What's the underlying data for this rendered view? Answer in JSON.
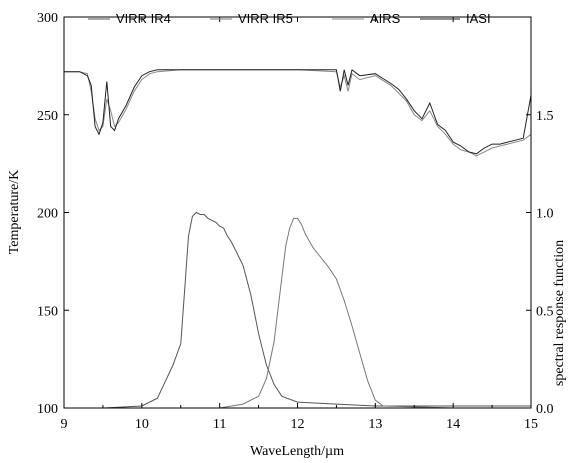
{
  "chart_data": {
    "type": "line",
    "xlabel": "WaveLength/µm",
    "ylabel_left": "Temperature/K",
    "ylabel_right": "spectral response function",
    "xlim": [
      9,
      15
    ],
    "ylim_left": [
      100,
      300
    ],
    "ylim_right": [
      0.0,
      2.0
    ],
    "x_ticks": [
      "9",
      "10",
      "11",
      "12",
      "13",
      "14",
      "15"
    ],
    "y_ticks_left": [
      "100",
      "150",
      "200",
      "250",
      "300"
    ],
    "y_ticks_right": [
      "0.0",
      "0.5",
      "1.0",
      "1.5"
    ],
    "legend_position": "top",
    "series": [
      {
        "name": "VIRR IR4",
        "axis": "right",
        "color": "#555555",
        "x": [
          9.0,
          9.5,
          10.0,
          10.2,
          10.4,
          10.5,
          10.55,
          10.6,
          10.65,
          10.7,
          10.75,
          10.8,
          10.85,
          10.9,
          10.95,
          11.0,
          11.05,
          11.1,
          11.15,
          11.2,
          11.3,
          11.4,
          11.5,
          11.6,
          11.7,
          11.8,
          12.0,
          12.5,
          13.0,
          15.0
        ],
        "y": [
          0.0,
          0.0,
          0.01,
          0.05,
          0.22,
          0.33,
          0.6,
          0.88,
          0.98,
          1.0,
          0.99,
          0.99,
          0.97,
          0.96,
          0.95,
          0.93,
          0.92,
          0.88,
          0.85,
          0.81,
          0.73,
          0.58,
          0.38,
          0.22,
          0.12,
          0.06,
          0.03,
          0.02,
          0.01,
          0.01
        ]
      },
      {
        "name": "VIRR IR5",
        "axis": "right",
        "color": "#777777",
        "x": [
          9.0,
          11.0,
          11.3,
          11.5,
          11.6,
          11.7,
          11.8,
          11.85,
          11.9,
          11.95,
          12.0,
          12.05,
          12.1,
          12.2,
          12.3,
          12.4,
          12.5,
          12.6,
          12.7,
          12.8,
          12.9,
          13.0,
          13.1,
          14.0,
          15.0
        ],
        "y": [
          0.0,
          0.0,
          0.02,
          0.06,
          0.15,
          0.34,
          0.67,
          0.83,
          0.92,
          0.97,
          0.97,
          0.94,
          0.89,
          0.82,
          0.77,
          0.72,
          0.66,
          0.55,
          0.42,
          0.28,
          0.14,
          0.04,
          0.01,
          0.0,
          0.0
        ]
      },
      {
        "name": "AIRS",
        "axis": "left",
        "color": "#888888",
        "x": [
          9.0,
          9.2,
          9.3,
          9.35,
          9.4,
          9.45,
          9.5,
          9.55,
          9.6,
          9.65,
          9.7,
          9.8,
          9.9,
          10.0,
          10.1,
          10.2,
          10.5,
          11.0,
          11.5,
          12.0,
          12.5,
          12.55,
          12.6,
          12.65,
          12.7,
          12.8,
          13.0,
          13.2,
          13.3,
          13.4,
          13.5,
          13.6,
          13.7,
          13.8,
          13.9,
          14.0,
          14.1,
          14.2,
          14.3,
          14.4,
          14.5,
          14.6,
          14.7,
          14.8,
          14.9,
          15.0
        ],
        "y": [
          272,
          272,
          271,
          262,
          248,
          242,
          244,
          258,
          252,
          244,
          246,
          253,
          262,
          268,
          271,
          272,
          273,
          273,
          273,
          273,
          272,
          264,
          270,
          262,
          271,
          268,
          270,
          265,
          261,
          257,
          250,
          247,
          252,
          244,
          240,
          235,
          232,
          231,
          229,
          231,
          233,
          234,
          235,
          236,
          237,
          240
        ]
      },
      {
        "name": "IASI",
        "axis": "left",
        "color": "#222222",
        "x": [
          9.0,
          9.2,
          9.3,
          9.35,
          9.4,
          9.45,
          9.5,
          9.55,
          9.6,
          9.65,
          9.7,
          9.8,
          9.9,
          10.0,
          10.1,
          10.2,
          10.5,
          11.0,
          11.5,
          12.0,
          12.5,
          12.55,
          12.6,
          12.65,
          12.7,
          12.8,
          13.0,
          13.2,
          13.3,
          13.4,
          13.5,
          13.6,
          13.7,
          13.8,
          13.9,
          14.0,
          14.1,
          14.2,
          14.3,
          14.4,
          14.5,
          14.6,
          14.7,
          14.8,
          14.9,
          15.0
        ],
        "y": [
          272,
          272,
          270,
          265,
          244,
          240,
          246,
          267,
          244,
          242,
          248,
          255,
          264,
          270,
          272,
          273,
          273,
          273,
          273,
          273,
          273,
          262,
          273,
          265,
          273,
          270,
          271,
          266,
          263,
          258,
          252,
          248,
          256,
          245,
          242,
          236,
          234,
          231,
          230,
          233,
          235,
          235,
          236,
          237,
          238,
          260
        ]
      }
    ]
  }
}
